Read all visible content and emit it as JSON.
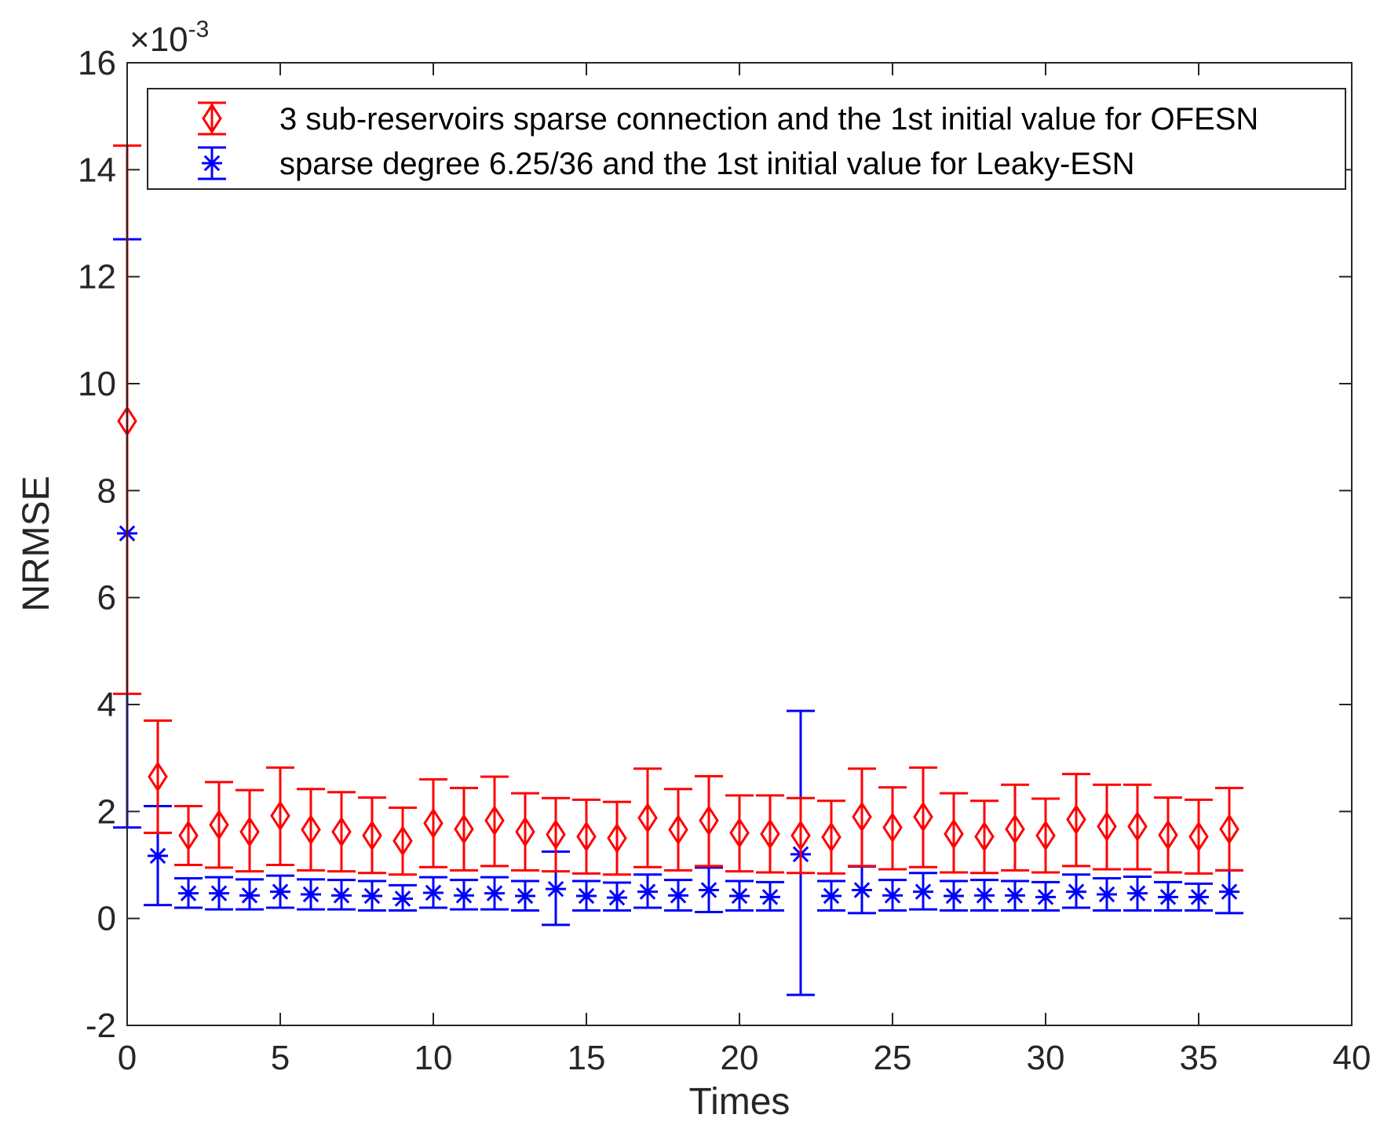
{
  "chart_data": {
    "type": "errorbar",
    "title": "",
    "xlabel": "Times",
    "ylabel": "NRMSE",
    "y_scale_exponent": "×10^-3",
    "y_exponent_base": "×10",
    "y_exponent_power": "-3",
    "xlim": [
      0,
      40
    ],
    "ylim": [
      -2,
      16
    ],
    "x_ticks": [
      0,
      5,
      10,
      15,
      20,
      25,
      30,
      35,
      40
    ],
    "y_ticks": [
      -2,
      0,
      2,
      4,
      6,
      8,
      10,
      12,
      14,
      16
    ],
    "legend_position": "top-right",
    "series": [
      {
        "name": "3 sub-reservoirs sparse connection and the 1st initial value for OFESN",
        "color": "#ff0000",
        "marker": "diamond",
        "x": [
          0,
          1,
          2,
          3,
          4,
          5,
          6,
          7,
          8,
          9,
          10,
          11,
          12,
          13,
          14,
          15,
          16,
          17,
          18,
          19,
          20,
          21,
          22,
          23,
          24,
          25,
          26,
          27,
          28,
          29,
          30,
          31,
          32,
          33,
          34,
          35,
          36
        ],
        "y": [
          9.3,
          2.65,
          1.55,
          1.75,
          1.62,
          1.92,
          1.66,
          1.62,
          1.55,
          1.45,
          1.78,
          1.67,
          1.83,
          1.62,
          1.57,
          1.53,
          1.5,
          1.88,
          1.66,
          1.83,
          1.6,
          1.58,
          1.55,
          1.52,
          1.9,
          1.7,
          1.9,
          1.58,
          1.53,
          1.67,
          1.55,
          1.85,
          1.72,
          1.72,
          1.56,
          1.53,
          1.67
        ],
        "lower": [
          4.2,
          1.6,
          1.0,
          0.95,
          0.88,
          1.0,
          0.9,
          0.88,
          0.85,
          0.82,
          0.96,
          0.9,
          0.98,
          0.9,
          0.88,
          0.84,
          0.82,
          0.96,
          0.9,
          0.98,
          0.88,
          0.86,
          0.85,
          0.84,
          0.98,
          0.92,
          0.96,
          0.86,
          0.85,
          0.9,
          0.86,
          0.98,
          0.92,
          0.92,
          0.86,
          0.84,
          0.9
        ],
        "upper": [
          14.45,
          3.7,
          2.1,
          2.55,
          2.4,
          2.82,
          2.42,
          2.36,
          2.26,
          2.07,
          2.6,
          2.44,
          2.65,
          2.34,
          2.25,
          2.22,
          2.18,
          2.8,
          2.42,
          2.66,
          2.3,
          2.3,
          2.25,
          2.2,
          2.8,
          2.45,
          2.82,
          2.34,
          2.2,
          2.5,
          2.24,
          2.7,
          2.5,
          2.5,
          2.26,
          2.22,
          2.44
        ]
      },
      {
        "name": "sparse degree 6.25/36 and the 1st initial value for Leaky-ESN",
        "color": "#0000ff",
        "marker": "asterisk",
        "x": [
          0,
          1,
          2,
          3,
          4,
          5,
          6,
          7,
          8,
          9,
          10,
          11,
          12,
          13,
          14,
          15,
          16,
          17,
          18,
          19,
          20,
          21,
          22,
          23,
          24,
          25,
          26,
          27,
          28,
          29,
          30,
          31,
          32,
          33,
          34,
          35,
          36
        ],
        "y": [
          7.2,
          1.17,
          0.47,
          0.47,
          0.43,
          0.5,
          0.45,
          0.43,
          0.42,
          0.37,
          0.48,
          0.43,
          0.47,
          0.42,
          0.55,
          0.42,
          0.39,
          0.5,
          0.43,
          0.53,
          0.42,
          0.4,
          1.2,
          0.42,
          0.53,
          0.43,
          0.5,
          0.42,
          0.43,
          0.43,
          0.4,
          0.5,
          0.45,
          0.47,
          0.4,
          0.4,
          0.5
        ],
        "lower": [
          1.7,
          0.25,
          0.2,
          0.17,
          0.17,
          0.2,
          0.17,
          0.17,
          0.15,
          0.15,
          0.2,
          0.17,
          0.17,
          0.15,
          -0.12,
          0.15,
          0.15,
          0.2,
          0.15,
          0.12,
          0.15,
          0.15,
          -1.43,
          0.15,
          0.1,
          0.15,
          0.17,
          0.15,
          0.15,
          0.15,
          0.15,
          0.2,
          0.15,
          0.15,
          0.15,
          0.15,
          0.1
        ],
        "upper": [
          12.7,
          2.1,
          0.75,
          0.77,
          0.73,
          0.8,
          0.73,
          0.72,
          0.7,
          0.62,
          0.77,
          0.72,
          0.77,
          0.7,
          1.25,
          0.7,
          0.67,
          0.82,
          0.72,
          0.95,
          0.7,
          0.68,
          3.88,
          0.7,
          0.97,
          0.72,
          0.85,
          0.7,
          0.72,
          0.7,
          0.68,
          0.82,
          0.75,
          0.78,
          0.68,
          0.65,
          0.9
        ]
      }
    ]
  }
}
